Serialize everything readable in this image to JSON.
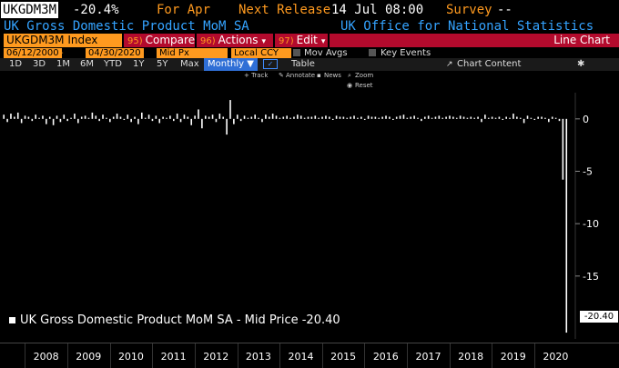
{
  "header": {
    "ticker": "UKGDM3M",
    "value": "-20.4%",
    "for_label": "For Apr",
    "next_release_label": "Next Release",
    "next_release_value": "14 Jul 08:00",
    "survey_label": "Survey",
    "survey_value": "--"
  },
  "subtitle": {
    "name": "UK Gross Domestic Product MoM SA",
    "source": "UK Office for National Statistics"
  },
  "toolbar": {
    "index": "UKGDM3M Index",
    "compare_num": "95)",
    "compare_label": "Compare",
    "actions_num": "96)",
    "actions_label": "Actions",
    "edit_num": "97)",
    "edit_label": "Edit",
    "chart_type": "Line Chart"
  },
  "options": {
    "start_date": "06/12/2000",
    "end_date": "04/30/2020",
    "price_field": "Mid Px",
    "currency": "Local CCY",
    "mov_avgs": "Mov Avgs",
    "key_events": "Key Events"
  },
  "periods": {
    "items": [
      "1D",
      "3D",
      "1M",
      "6M",
      "YTD",
      "1Y",
      "5Y",
      "Max"
    ],
    "selected": "Monthly ▼",
    "table": "Table",
    "chart_content": "Chart Content"
  },
  "track_bar": {
    "track": "+ Track",
    "annotate": "Annotate",
    "news": "News",
    "zoom": "Zoom",
    "reset": "Reset"
  },
  "legend": {
    "text": "UK Gross Domestic Product MoM SA - Mid Price -20.40",
    "last_value": "-20.40"
  },
  "colors": {
    "orange": "#ff9a1f",
    "blue_text": "#34a3ff",
    "red_bar": "#b30a2d",
    "series": "#ffffff"
  },
  "chart_data": {
    "type": "bar",
    "title": "UK Gross Domestic Product MoM SA",
    "ylabel": "",
    "ylim": [
      -21,
      2.5
    ],
    "yticks": [
      0,
      -5,
      -10,
      -15
    ],
    "x_tick_labels": [
      "2008",
      "2009",
      "2010",
      "2011",
      "2012",
      "2013",
      "2014",
      "2015",
      "2016",
      "2017",
      "2018",
      "2019",
      "2020"
    ],
    "x_start_year": 2007.5,
    "x_end_year": 2020.92,
    "series": [
      {
        "name": "UK Gross Domestic Product MoM SA - Mid Price",
        "start": "2007-07",
        "frequency": "monthly",
        "values": [
          0.4,
          -0.3,
          0.5,
          0.2,
          0.6,
          -0.4,
          0.3,
          0.2,
          -0.2,
          0.4,
          0.1,
          0.3,
          -0.5,
          0.2,
          -0.6,
          0.3,
          -0.3,
          0.4,
          -0.2,
          0.1,
          0.5,
          -0.4,
          0.2,
          0.3,
          0.1,
          0.6,
          0.3,
          -0.2,
          0.4,
          0.1,
          -0.3,
          0.2,
          0.5,
          0.2,
          -0.1,
          0.4,
          -0.3,
          0.2,
          -0.5,
          0.6,
          0.1,
          0.4,
          -0.2,
          0.3,
          -0.4,
          0.2,
          0.1,
          0.3,
          -0.2,
          0.5,
          -0.3,
          0.4,
          0.2,
          -0.6,
          0.3,
          0.9,
          -0.9,
          0.3,
          0.2,
          0.4,
          -0.3,
          0.5,
          0.2,
          -1.5,
          1.8,
          -0.5,
          0.4,
          -0.2,
          0.3,
          0.1,
          0.2,
          0.4,
          0.1,
          -0.3,
          0.4,
          0.2,
          0.5,
          0.3,
          0.1,
          0.2,
          0.3,
          0.1,
          0.2,
          0.4,
          0.3,
          0.1,
          0.2,
          0.2,
          0.3,
          0.1,
          0.2,
          0.3,
          0.2,
          -0.1,
          0.3,
          0.2,
          0.2,
          0.1,
          0.2,
          0.3,
          0.1,
          0.2,
          -0.1,
          0.3,
          0.2,
          0.2,
          0.1,
          0.2,
          0.3,
          0.2,
          -0.1,
          0.2,
          0.3,
          0.4,
          0.1,
          0.2,
          0.3,
          0.1,
          -0.2,
          0.2,
          0.3,
          0.1,
          0.2,
          0.3,
          0.1,
          0.2,
          0.3,
          0.2,
          0.1,
          0.3,
          0.2,
          0.1,
          0.2,
          0.1,
          0.2,
          -0.3,
          0.4,
          0.1,
          0.2,
          0.1,
          0.2,
          -0.1,
          0.2,
          0.1,
          0.5,
          0.2,
          0.1,
          -0.4,
          0.3,
          0.1,
          -0.1,
          0.2,
          0.2,
          0.1,
          -0.3,
          0.2,
          0.1,
          -0.2,
          -5.8,
          -20.4
        ]
      }
    ],
    "last_value": -20.4,
    "grid": false,
    "legend_placement": "bottom-left"
  }
}
